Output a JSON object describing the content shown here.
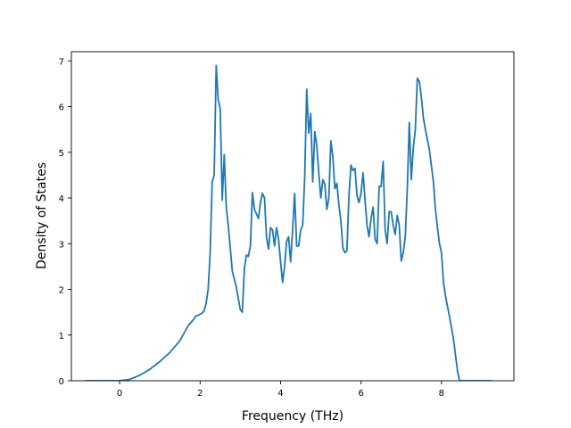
{
  "chart_data": {
    "type": "line",
    "xlabel": "Frequency (THz)",
    "ylabel": "Density of States",
    "xlim": [
      -1.2,
      9.8
    ],
    "ylim": [
      0,
      7.2
    ],
    "x_ticks": [
      0,
      2,
      4,
      6,
      8
    ],
    "y_ticks": [
      0,
      1,
      2,
      3,
      4,
      5,
      6,
      7
    ],
    "grid": false,
    "series": [
      {
        "color": "#1f77b4",
        "x": [
          -0.85,
          0.0,
          0.25,
          0.5,
          0.75,
          1.0,
          1.25,
          1.5,
          1.7,
          1.8,
          1.9,
          1.95,
          2.05,
          2.1,
          2.15,
          2.2,
          2.25,
          2.3,
          2.35,
          2.4,
          2.45,
          2.5,
          2.55,
          2.6,
          2.65,
          2.7,
          2.75,
          2.8,
          2.9,
          3.0,
          3.05,
          3.1,
          3.15,
          3.2,
          3.25,
          3.3,
          3.35,
          3.4,
          3.45,
          3.5,
          3.55,
          3.6,
          3.65,
          3.7,
          3.75,
          3.8,
          3.85,
          3.9,
          3.95,
          4.0,
          4.05,
          4.1,
          4.15,
          4.2,
          4.25,
          4.3,
          4.35,
          4.4,
          4.45,
          4.5,
          4.55,
          4.6,
          4.65,
          4.7,
          4.75,
          4.8,
          4.85,
          4.9,
          4.95,
          5.0,
          5.05,
          5.1,
          5.15,
          5.2,
          5.25,
          5.3,
          5.35,
          5.4,
          5.45,
          5.5,
          5.55,
          5.6,
          5.65,
          5.7,
          5.75,
          5.8,
          5.85,
          5.9,
          5.95,
          6.0,
          6.05,
          6.1,
          6.15,
          6.2,
          6.25,
          6.3,
          6.35,
          6.4,
          6.45,
          6.5,
          6.55,
          6.6,
          6.65,
          6.7,
          6.75,
          6.8,
          6.85,
          6.9,
          6.95,
          7.0,
          7.05,
          7.1,
          7.15,
          7.2,
          7.25,
          7.3,
          7.35,
          7.4,
          7.45,
          7.5,
          7.55,
          7.6,
          7.7,
          7.8,
          7.85,
          7.9,
          7.95,
          8.0,
          8.05,
          8.1,
          8.2,
          8.3,
          8.35,
          8.4,
          8.45,
          8.6,
          9.25
        ],
        "y": [
          0,
          0,
          0.03,
          0.12,
          0.25,
          0.42,
          0.62,
          0.88,
          1.2,
          1.3,
          1.42,
          1.43,
          1.48,
          1.53,
          1.7,
          2.0,
          2.8,
          4.35,
          4.5,
          6.9,
          6.15,
          5.95,
          3.95,
          4.95,
          3.8,
          3.4,
          2.9,
          2.4,
          2.05,
          1.55,
          1.5,
          2.45,
          2.75,
          2.72,
          2.95,
          4.12,
          3.75,
          3.65,
          3.55,
          3.9,
          4.1,
          4.0,
          3.15,
          2.88,
          3.35,
          3.3,
          2.95,
          3.35,
          3.1,
          2.6,
          2.15,
          2.5,
          3.05,
          3.15,
          2.6,
          3.3,
          4.1,
          2.95,
          2.95,
          3.3,
          3.4,
          4.45,
          6.38,
          5.42,
          5.85,
          4.35,
          5.45,
          5.15,
          4.55,
          4.0,
          4.4,
          4.3,
          3.75,
          4.0,
          5.25,
          4.9,
          4.2,
          4.32,
          3.85,
          3.5,
          2.9,
          2.8,
          2.85,
          4.05,
          4.72,
          4.6,
          4.65,
          4.05,
          3.9,
          4.1,
          4.55,
          3.95,
          3.4,
          3.15,
          3.55,
          3.8,
          3.1,
          3.0,
          4.25,
          4.25,
          4.8,
          3.3,
          3.0,
          3.7,
          3.7,
          3.4,
          3.2,
          3.62,
          3.4,
          2.62,
          2.8,
          3.15,
          4.2,
          5.65,
          4.4,
          5.1,
          5.5,
          6.62,
          6.55,
          6.2,
          5.75,
          5.5,
          5.05,
          4.35,
          3.75,
          3.35,
          3.0,
          2.8,
          2.15,
          1.85,
          1.4,
          0.9,
          0.55,
          0.2,
          0,
          0,
          0
        ]
      }
    ]
  }
}
